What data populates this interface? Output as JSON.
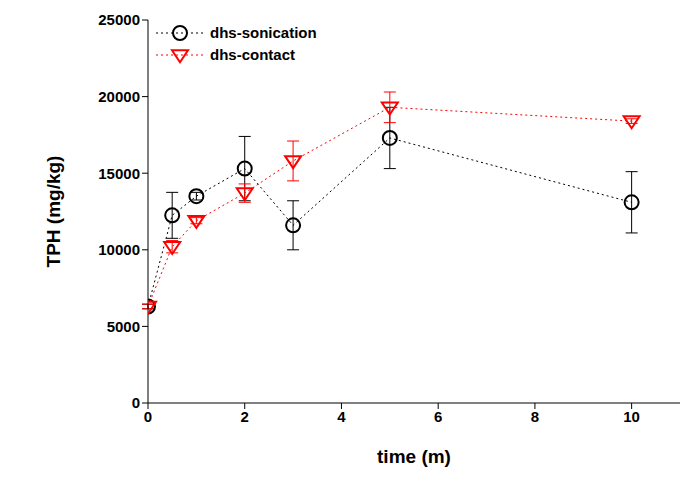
{
  "chart_data": {
    "type": "scatter",
    "x_label": "time (m)",
    "y_label": "TPH (mg/kg)",
    "xlim": [
      0,
      11
    ],
    "xticks": [
      0,
      2,
      4,
      6,
      8,
      10
    ],
    "ylim": [
      0,
      25000
    ],
    "yticks": [
      0,
      5000,
      10000,
      15000,
      20000,
      25000
    ],
    "legend": "upper left",
    "grid": false,
    "x": [
      0,
      0.5,
      1,
      2,
      3,
      5,
      10
    ],
    "series": [
      {
        "name": "dhs-sonication",
        "color": "#000000",
        "marker": "circle",
        "line_style": "dotted",
        "values": [
          6300,
          12250,
          13500,
          15300,
          11600,
          17300,
          13100
        ],
        "errors": [
          150,
          1500,
          250,
          2100,
          1600,
          2000,
          2000
        ]
      },
      {
        "name": "dhs-contact",
        "color": "#ff0000",
        "marker": "triangle-down",
        "line_style": "dotted",
        "values": [
          6300,
          10200,
          11900,
          13700,
          15800,
          19300,
          18400
        ],
        "errors": [
          150,
          400,
          200,
          600,
          1300,
          1000,
          150
        ]
      }
    ]
  }
}
